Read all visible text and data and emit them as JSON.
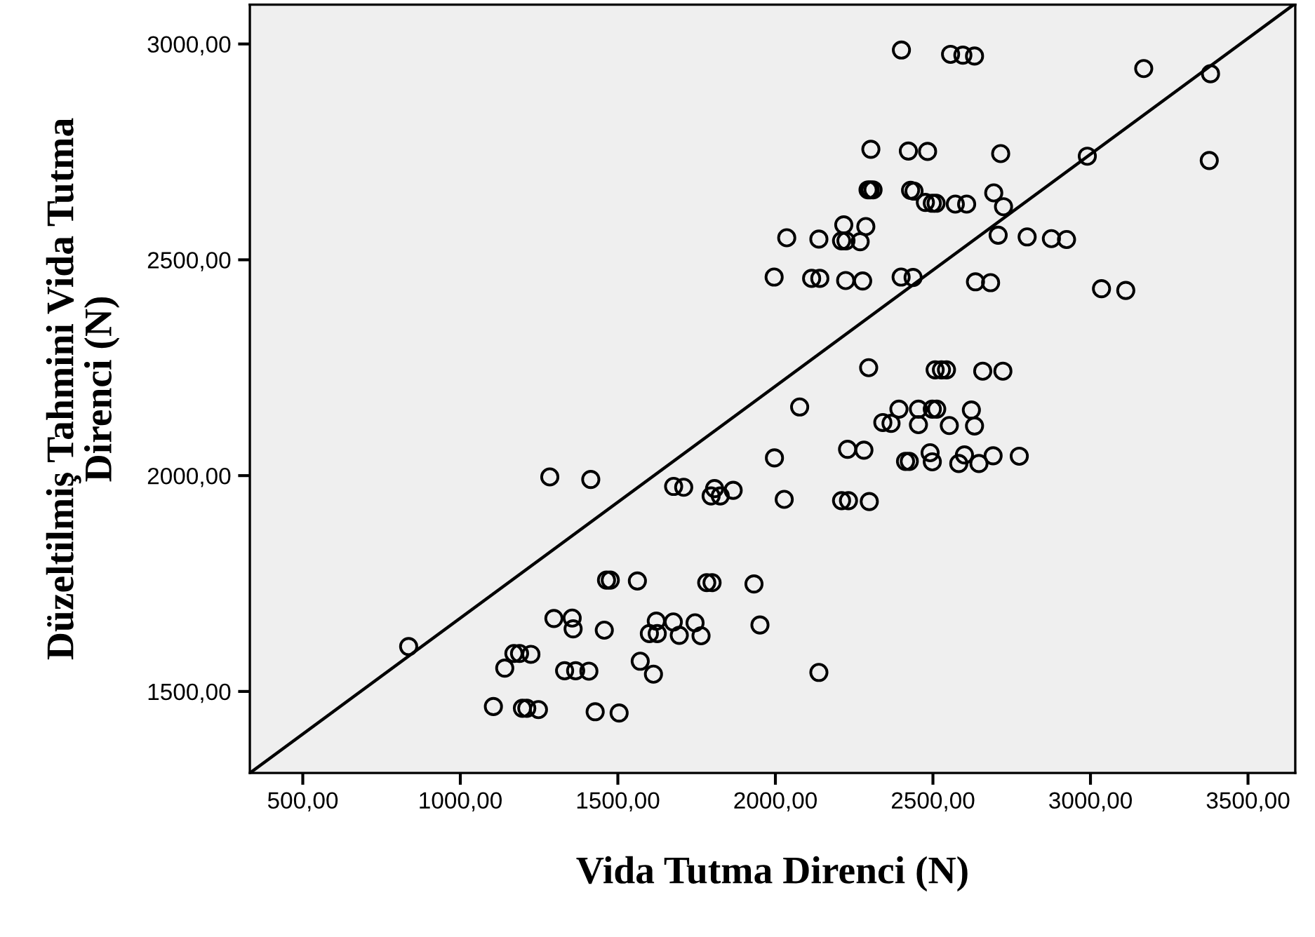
{
  "chart_data": {
    "type": "scatter",
    "xlabel": "Vida Tutma Direnci (N)",
    "ylabel": "Düzeltilmiş Tahmini Vida Tutma\nDirenci (N)",
    "marker": "circle",
    "grid": false,
    "legend": false,
    "xlim": [
      332,
      3650
    ],
    "ylim": [
      1311,
      3091
    ],
    "xticks": [
      {
        "value": 500,
        "label": "500,00"
      },
      {
        "value": 1000,
        "label": "1000,00"
      },
      {
        "value": 1500,
        "label": "1500,00"
      },
      {
        "value": 2000,
        "label": "2000,00"
      },
      {
        "value": 2500,
        "label": "2500,00"
      },
      {
        "value": 3000,
        "label": "3000,00"
      },
      {
        "value": 3500,
        "label": "3500,00"
      }
    ],
    "yticks": [
      {
        "value": 1500,
        "label": "1500,00"
      },
      {
        "value": 2000,
        "label": "2000,00"
      },
      {
        "value": 2500,
        "label": "2500,00"
      },
      {
        "value": 3000,
        "label": "3000,00"
      }
    ],
    "series": [
      {
        "color": "#000000",
        "x": [
          2400,
          2556,
          2595,
          2632,
          3169,
          3381,
          2303,
          2422,
          2483,
          2715,
          2990,
          3377,
          2294,
          2301,
          2310,
          2429,
          2440,
          2476,
          2498,
          2510,
          2571,
          2607,
          2693,
          2724,
          2217,
          2287,
          2036,
          2138,
          2210,
          2224,
          2269,
          2707,
          2799,
          2876,
          2924,
          1996,
          2115,
          2141,
          2223,
          2277,
          2399,
          2437,
          2635,
          2683,
          3035,
          3112,
          2296,
          2507,
          2527,
          2543,
          2658,
          2722,
          1284,
          1414,
          1677,
          1709,
          1807,
          1796,
          1825,
          1866,
          836,
          1464,
          1476,
          1562,
          1782,
          1799,
          1297,
          1355,
          1358,
          1457,
          1622,
          1600,
          1625,
          1676,
          1695,
          1745,
          1764,
          1170,
          1188,
          1224,
          1141,
          1331,
          1366,
          1408,
          1571,
          1613,
          1105,
          1197,
          1211,
          1248,
          1428,
          1504,
          2077,
          1932,
          1951,
          2138,
          1997,
          2028,
          2229,
          2281,
          2210,
          2232,
          2298,
          2341,
          2367,
          2392,
          2454,
          2454,
          2498,
          2512,
          2552,
          2622,
          2632,
          2413,
          2425,
          2491,
          2498,
          2582,
          2600,
          2646,
          2691,
          2774
        ],
        "values": [
          2986,
          2976,
          2974,
          2972,
          2943,
          2931,
          2756,
          2752,
          2751,
          2746,
          2740,
          2730,
          2662,
          2662,
          2662,
          2661,
          2659,
          2633,
          2631,
          2631,
          2629,
          2629,
          2655,
          2623,
          2581,
          2577,
          2551,
          2548,
          2544,
          2544,
          2542,
          2557,
          2553,
          2549,
          2547,
          2460,
          2457,
          2457,
          2452,
          2451,
          2460,
          2459,
          2449,
          2447,
          2433,
          2429,
          2250,
          2245,
          2245,
          2245,
          2242,
          2242,
          1997,
          1991,
          1975,
          1973,
          1970,
          1953,
          1953,
          1966,
          1604,
          1758,
          1758,
          1756,
          1752,
          1752,
          1669,
          1670,
          1645,
          1642,
          1663,
          1634,
          1634,
          1661,
          1630,
          1659,
          1629,
          1588,
          1588,
          1586,
          1554,
          1548,
          1548,
          1547,
          1570,
          1540,
          1465,
          1461,
          1461,
          1458,
          1453,
          1450,
          2159,
          1749,
          1654,
          1544,
          2041,
          1945,
          2061,
          2059,
          1942,
          1942,
          1940,
          2123,
          2121,
          2154,
          2154,
          2118,
          2154,
          2154,
          2116,
          2152,
          2115,
          2033,
          2033,
          2053,
          2032,
          2028,
          2048,
          2028,
          2046,
          2045
        ]
      },
      {
        "type": "line",
        "color": "#000000",
        "marker": "none",
        "line_style": "solid",
        "x": [
          332,
          3641
        ],
        "values": [
          1311,
          3089
        ]
      }
    ]
  }
}
